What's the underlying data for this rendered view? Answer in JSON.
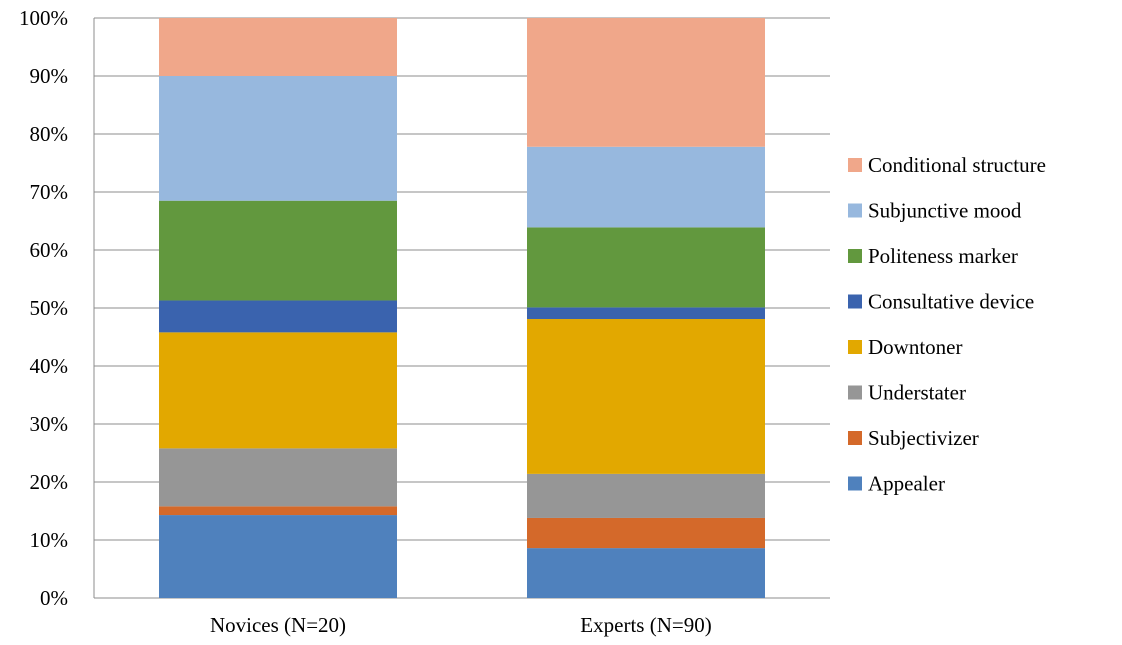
{
  "chart_data": {
    "type": "bar",
    "stacked": true,
    "percent": true,
    "categories": [
      "Novices (N=20)",
      "Experts (N=90)"
    ],
    "y_ticks": [
      "0%",
      "10%",
      "20%",
      "30%",
      "40%",
      "50%",
      "60%",
      "70%",
      "80%",
      "90%",
      "100%"
    ],
    "ylim": [
      0,
      100
    ],
    "grid": true,
    "legend_position": "right",
    "series": [
      {
        "name": "Appealer",
        "color": "#4F81BD",
        "values": [
          14.3,
          8.6
        ]
      },
      {
        "name": "Subjectivizer",
        "color": "#D4692A",
        "values": [
          1.5,
          5.2
        ]
      },
      {
        "name": "Understater",
        "color": "#969696",
        "values": [
          10.0,
          7.6
        ]
      },
      {
        "name": "Downtoner",
        "color": "#E2A800",
        "values": [
          20.0,
          26.7
        ]
      },
      {
        "name": "Consultative device",
        "color": "#3A63AE",
        "values": [
          5.5,
          2.0
        ]
      },
      {
        "name": "Politeness marker",
        "color": "#62983E",
        "values": [
          17.2,
          13.8
        ]
      },
      {
        "name": "Subjunctive mood",
        "color": "#97B8DE",
        "values": [
          21.5,
          13.9
        ]
      },
      {
        "name": "Conditional structure",
        "color": "#F0A78A",
        "values": [
          10.0,
          22.2
        ]
      }
    ]
  }
}
